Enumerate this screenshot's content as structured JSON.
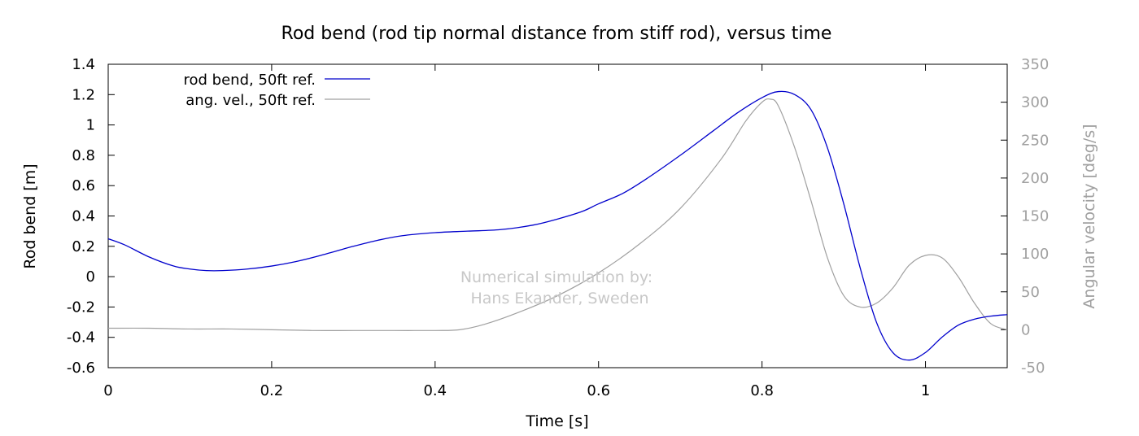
{
  "chart_data": {
    "type": "line",
    "title": "Rod bend (rod tip normal distance from stiff rod), versus time",
    "xlabel": "Time [s]",
    "ylabel": "Rod bend [m]",
    "y2label": "Angular velocity [deg/s]",
    "xlim": [
      0,
      1.1
    ],
    "ylim": [
      -0.6,
      1.4
    ],
    "y2lim": [
      -50,
      350
    ],
    "xticks": [
      "0",
      "0.2",
      "0.4",
      "0.6",
      "0.8",
      "1"
    ],
    "yticks": [
      "-0.6",
      "-0.4",
      "-0.2",
      "0",
      "0.2",
      "0.4",
      "0.6",
      "0.8",
      "1",
      "1.2",
      "1.4"
    ],
    "y2ticks": [
      "-50",
      "0",
      "50",
      "100",
      "150",
      "200",
      "250",
      "300",
      "350"
    ],
    "legend_position": "top-left",
    "grid": false,
    "annotation": [
      "Numerical simulation by:",
      "Hans Ekander, Sweden"
    ],
    "series": [
      {
        "name": "rod bend, 50ft ref.",
        "axis": "left",
        "color": "#0000cc",
        "x": [
          0,
          0.02,
          0.05,
          0.08,
          0.1,
          0.12,
          0.14,
          0.17,
          0.2,
          0.23,
          0.26,
          0.3,
          0.33,
          0.36,
          0.4,
          0.44,
          0.48,
          0.52,
          0.55,
          0.58,
          0.6,
          0.63,
          0.66,
          0.7,
          0.74,
          0.77,
          0.8,
          0.82,
          0.84,
          0.86,
          0.88,
          0.9,
          0.92,
          0.94,
          0.96,
          0.98,
          1.0,
          1.02,
          1.04,
          1.06,
          1.08,
          1.1
        ],
        "y": [
          0.25,
          0.21,
          0.13,
          0.07,
          0.05,
          0.04,
          0.04,
          0.05,
          0.07,
          0.1,
          0.14,
          0.2,
          0.24,
          0.27,
          0.29,
          0.3,
          0.31,
          0.34,
          0.38,
          0.43,
          0.48,
          0.55,
          0.65,
          0.8,
          0.96,
          1.08,
          1.18,
          1.22,
          1.2,
          1.1,
          0.85,
          0.48,
          0.06,
          -0.3,
          -0.5,
          -0.55,
          -0.5,
          -0.4,
          -0.32,
          -0.28,
          -0.26,
          -0.25
        ]
      },
      {
        "name": "ang. vel., 50ft ref.",
        "axis": "right",
        "color": "#a0a0a0",
        "x": [
          0,
          0.05,
          0.1,
          0.15,
          0.2,
          0.25,
          0.3,
          0.35,
          0.4,
          0.43,
          0.46,
          0.5,
          0.55,
          0.6,
          0.65,
          0.7,
          0.75,
          0.78,
          0.8,
          0.81,
          0.82,
          0.84,
          0.86,
          0.88,
          0.9,
          0.92,
          0.94,
          0.96,
          0.98,
          1.0,
          1.02,
          1.04,
          1.06,
          1.08,
          1.1
        ],
        "y": [
          2,
          2,
          1,
          1,
          0,
          -1,
          -1,
          -1,
          -1,
          0,
          7,
          22,
          45,
          75,
          113,
          160,
          225,
          275,
          300,
          304,
          295,
          240,
          170,
          95,
          45,
          30,
          35,
          55,
          85,
          98,
          95,
          70,
          35,
          8,
          0
        ]
      }
    ]
  }
}
